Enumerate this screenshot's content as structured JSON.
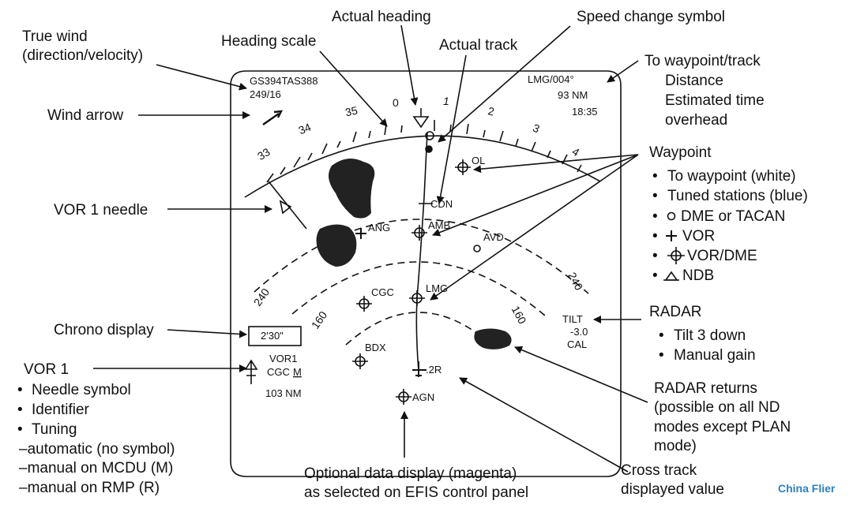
{
  "callouts": {
    "actual_heading": "Actual heading",
    "speed_change_symbol": "Speed change symbol",
    "true_wind_1": "True wind",
    "true_wind_2": "(direction/velocity)",
    "heading_scale": "Heading scale",
    "actual_track": "Actual track",
    "to_waypoint_track": "To waypoint/track",
    "distance": "Distance",
    "eta_1": "Estimated time",
    "eta_2": "overhead",
    "wind_arrow": "Wind arrow",
    "waypoint": "Waypoint",
    "wp_list": [
      "To waypoint (white)",
      "Tuned stations (blue)",
      "DME or TACAN",
      "VOR",
      "VOR/DME",
      "NDB"
    ],
    "vor1_needle": "VOR 1 needle",
    "chrono_display": "Chrono display",
    "radar": "RADAR",
    "radar_list": [
      "Tilt 3 down",
      "Manual gain"
    ],
    "vor1": "VOR 1",
    "vor1_list": [
      "Needle symbol",
      "Identifier",
      "Tuning"
    ],
    "vor1_tuning": [
      "–automatic (no symbol)",
      "–manual on MCDU (M)",
      "–manual on RMP (R)"
    ],
    "radar_returns": [
      "RADAR returns",
      "(possible on all ND",
      "modes except PLAN",
      "mode)"
    ],
    "optional_data": [
      "Optional data display (magenta)",
      "as selected on EFIS control panel"
    ],
    "cross_track": [
      "Cross track",
      "displayed value"
    ]
  },
  "display": {
    "gs_tas": "GS394TAS388",
    "wind_value": "249/16",
    "to_wp": "LMG/004°",
    "distance": "93 NM",
    "eta": "18:35",
    "heading_ticks": [
      "33",
      "34",
      "35",
      "0",
      "1",
      "2",
      "3",
      "4"
    ],
    "range_outer_left": "240",
    "range_outer_right": "240",
    "range_inner_left": "160",
    "range_inner_right": "160",
    "tilt": "TILT",
    "tilt_value": "-3.0",
    "cal": "CAL",
    "chrono": "2'30\"",
    "vor1_id": "VOR1",
    "vor1_cgc": "CGC",
    "vor1_m": "M",
    "vor1_dist": "103 NM",
    "cross_track": ".2R",
    "stations": {
      "ol": "OL",
      "cdn": "CDN",
      "amb": "AMB",
      "ang": "ANG",
      "avd": "AVD",
      "cgc": "CGC",
      "lmg": "LMG",
      "bdx": "BDX",
      "agn": "AGN"
    }
  },
  "watermark": "China Flier"
}
